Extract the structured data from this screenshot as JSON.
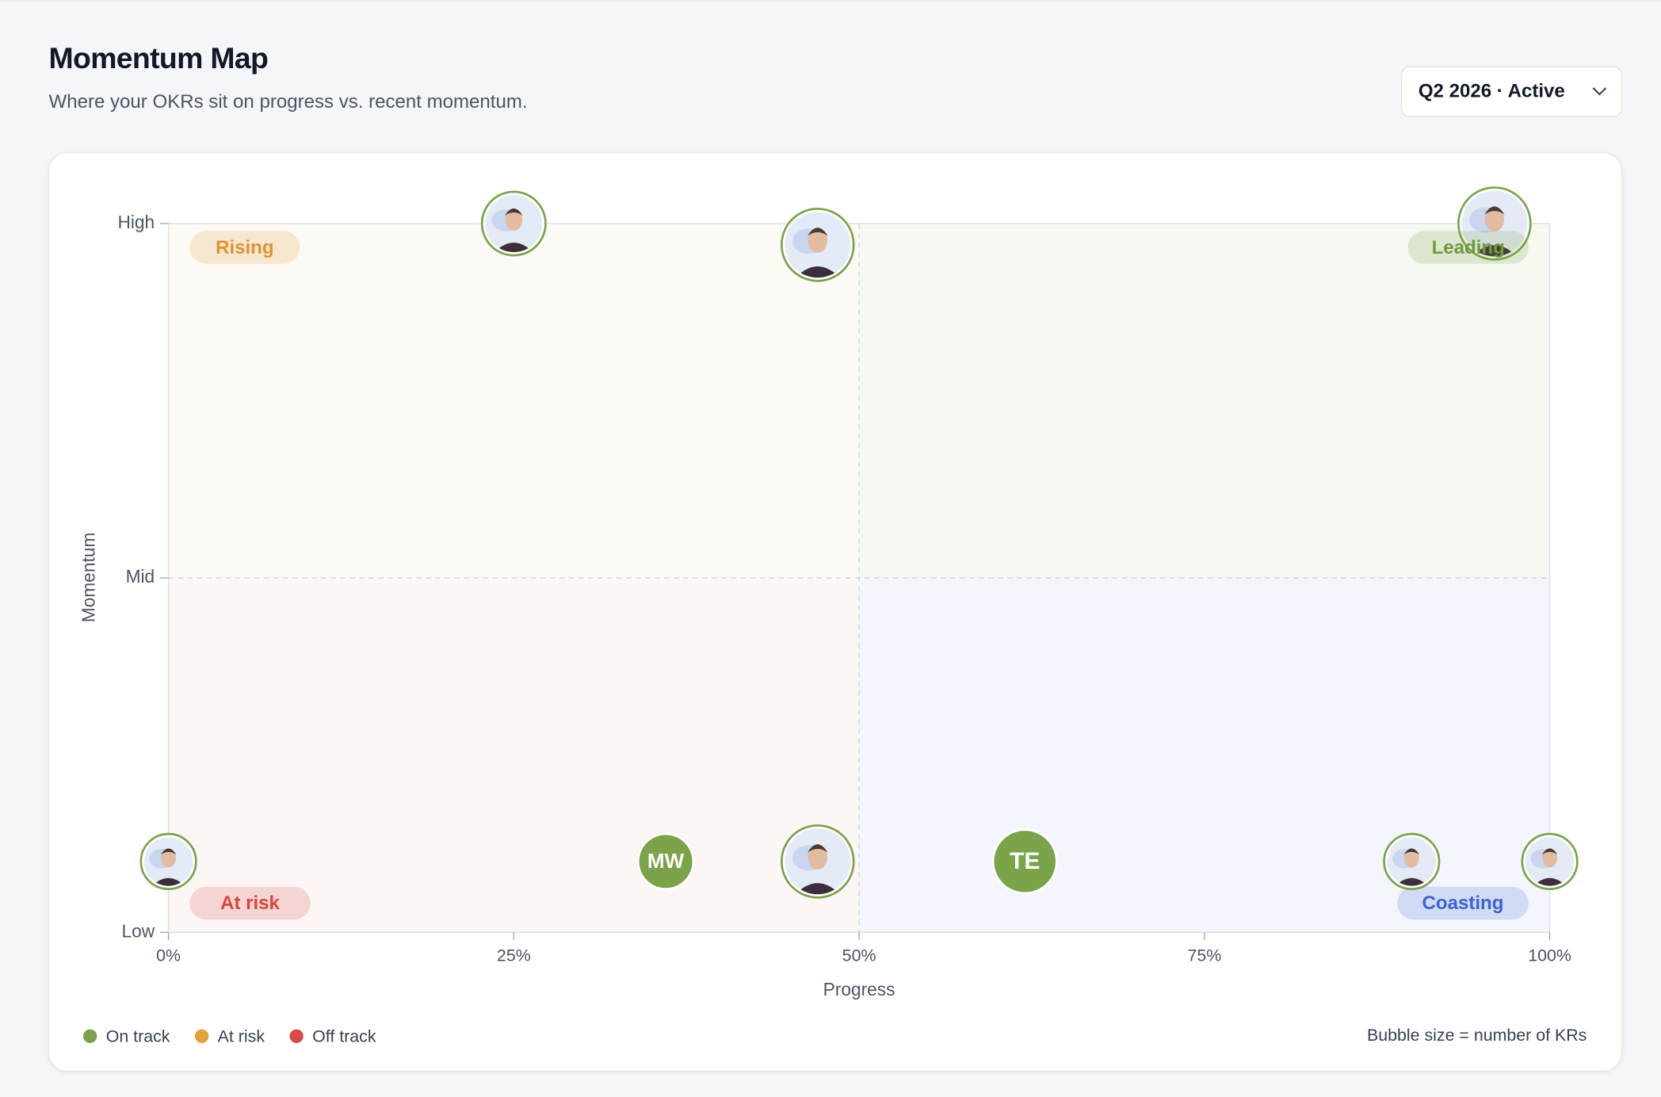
{
  "header": {
    "title": "Momentum Map",
    "subtitle": "Where your OKRs sit on progress vs. recent momentum.",
    "period_select": "Q2 2026 · Active"
  },
  "chart_data": {
    "type": "bubble",
    "x_label": "Progress",
    "y_label": "Momentum",
    "xlim": [
      0,
      100
    ],
    "ylim": [
      0,
      100
    ],
    "xticks": [
      {
        "value": 0,
        "label": "0%"
      },
      {
        "value": 25,
        "label": "25%"
      },
      {
        "value": 50,
        "label": "50%"
      },
      {
        "value": 75,
        "label": "75%"
      },
      {
        "value": 100,
        "label": "100%"
      }
    ],
    "yticks": [
      {
        "value": 0,
        "label": "Low"
      },
      {
        "value": 50,
        "label": "Mid"
      },
      {
        "value": 100,
        "label": "High"
      }
    ],
    "quadrants": [
      {
        "label": "Rising",
        "corner": "top-left",
        "color": "#e0932e"
      },
      {
        "label": "Leading",
        "corner": "top-right",
        "color": "#6f9a3a"
      },
      {
        "label": "At risk",
        "corner": "bottom-left",
        "color": "#d9453d"
      },
      {
        "label": "Coasting",
        "corner": "bottom-right",
        "color": "#3a63d6"
      }
    ],
    "series": [
      {
        "name": "On track",
        "color": "#7aa34a",
        "x": [
          25,
          47,
          96,
          0,
          36,
          47,
          62,
          90,
          100
        ],
        "values": [
          100,
          97,
          100,
          10,
          10,
          10,
          10,
          10,
          10
        ],
        "sizes": [
          2,
          3,
          3,
          1,
          1,
          3,
          2,
          1,
          1
        ],
        "labels": [
          null,
          null,
          null,
          null,
          "MW",
          null,
          "TE",
          null,
          null
        ]
      },
      {
        "name": "At risk",
        "color": "#e3a23b",
        "x": [],
        "values": [],
        "sizes": [],
        "labels": []
      },
      {
        "name": "Off track",
        "color": "#d64b45",
        "x": [],
        "values": [],
        "sizes": [],
        "labels": []
      }
    ],
    "note": "Bubble size = number of KRs"
  }
}
